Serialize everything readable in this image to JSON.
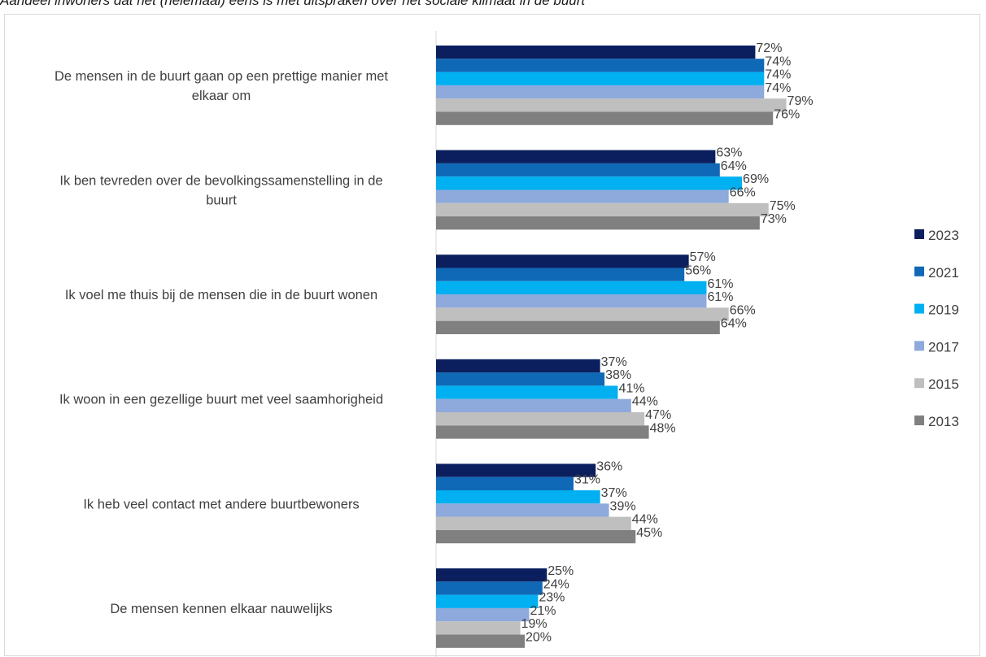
{
  "chart_data": {
    "type": "bar",
    "orientation": "horizontal",
    "title": "Aandeel inwoners dat het (helemaal) eens is met uitspraken over het sociale klimaat in de buurt",
    "value_suffix": "%",
    "categories": [
      "De mensen in de buurt gaan op een prettige manier met elkaar om",
      "Ik ben tevreden over de bevolkingssamenstelling in de buurt",
      "Ik voel me thuis bij de mensen die in de buurt wonen",
      "Ik woon in een gezellige buurt met veel saamhorigheid",
      "Ik heb veel contact met andere buurtbewoners",
      "De mensen kennen elkaar nauwelijks"
    ],
    "category_lines": [
      [
        "De mensen in de buurt gaan op een prettige manier met",
        "elkaar om"
      ],
      [
        "Ik ben tevreden over de bevolkingssamenstelling in de",
        "buurt"
      ],
      [
        "Ik voel me thuis bij de mensen die in de buurt wonen"
      ],
      [
        "Ik woon in een gezellige buurt met veel saamhorigheid"
      ],
      [
        "Ik heb veel contact met andere buurtbewoners"
      ],
      [
        "De mensen kennen elkaar nauwelijks"
      ]
    ],
    "series": [
      {
        "name": "2023",
        "color": "#0b1f5e",
        "values": [
          72,
          63,
          57,
          37,
          36,
          25
        ]
      },
      {
        "name": "2021",
        "color": "#1069b6",
        "values": [
          74,
          64,
          56,
          38,
          31,
          24
        ]
      },
      {
        "name": "2019",
        "color": "#00b0f0",
        "values": [
          74,
          69,
          61,
          41,
          37,
          23
        ]
      },
      {
        "name": "2017",
        "color": "#8ea9db",
        "values": [
          74,
          66,
          61,
          44,
          39,
          21
        ]
      },
      {
        "name": "2015",
        "color": "#bfbfbf",
        "values": [
          79,
          75,
          66,
          47,
          44,
          19
        ]
      },
      {
        "name": "2013",
        "color": "#808080",
        "values": [
          76,
          73,
          64,
          48,
          45,
          20
        ]
      }
    ],
    "xlim": [
      0,
      100
    ],
    "grid": false,
    "legend_position": "right"
  }
}
